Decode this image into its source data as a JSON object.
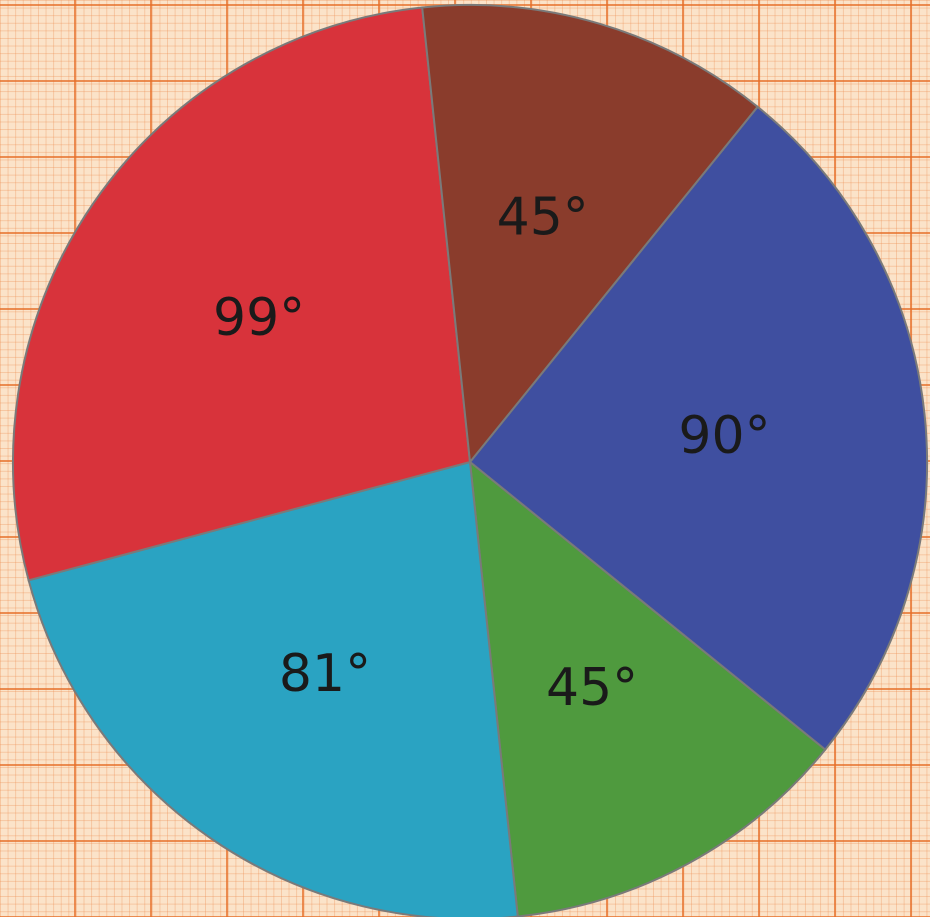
{
  "chart_data": {
    "type": "pie",
    "title": "",
    "slices": [
      {
        "label": "90°",
        "value": 90,
        "color": "#3f4fa0"
      },
      {
        "label": "45°",
        "value": 45,
        "color": "#4f9a3e"
      },
      {
        "label": "81°",
        "value": 81,
        "color": "#2aa3c2"
      },
      {
        "label": "99°",
        "value": 99,
        "color": "#d8333b"
      },
      {
        "label": "45°",
        "value": 45,
        "color": "#8a3c2c"
      }
    ],
    "start_angle_deg": -51,
    "direction": "clockwise",
    "legend": "none",
    "grid": true
  }
}
